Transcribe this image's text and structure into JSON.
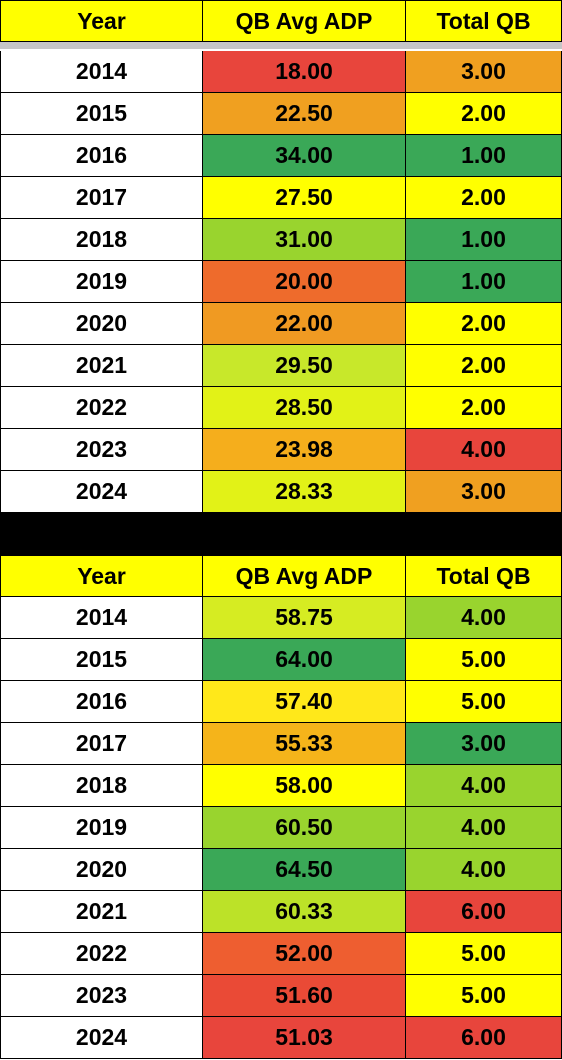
{
  "tables": [
    {
      "headers": [
        "Year",
        "QB Avg ADP",
        "Total QB"
      ],
      "rows": [
        {
          "year": "2014",
          "adp": "18.00",
          "total": "3.00",
          "adp_color": "#e8453c",
          "total_color": "#f0a020"
        },
        {
          "year": "2015",
          "adp": "22.50",
          "total": "2.00",
          "adp_color": "#f0a020",
          "total_color": "#ffff00"
        },
        {
          "year": "2016",
          "adp": "34.00",
          "total": "1.00",
          "adp_color": "#3aa857",
          "total_color": "#3aa857"
        },
        {
          "year": "2017",
          "adp": "27.50",
          "total": "2.00",
          "adp_color": "#ffff00",
          "total_color": "#ffff00"
        },
        {
          "year": "2018",
          "adp": "31.00",
          "total": "1.00",
          "adp_color": "#99d42e",
          "total_color": "#3aa857"
        },
        {
          "year": "2019",
          "adp": "20.00",
          "total": "1.00",
          "adp_color": "#ee6b2c",
          "total_color": "#3aa857"
        },
        {
          "year": "2020",
          "adp": "22.00",
          "total": "2.00",
          "adp_color": "#f09a22",
          "total_color": "#ffff00"
        },
        {
          "year": "2021",
          "adp": "29.50",
          "total": "2.00",
          "adp_color": "#c8e82a",
          "total_color": "#ffff00"
        },
        {
          "year": "2022",
          "adp": "28.50",
          "total": "2.00",
          "adp_color": "#e2f217",
          "total_color": "#ffff00"
        },
        {
          "year": "2023",
          "adp": "23.98",
          "total": "4.00",
          "adp_color": "#f5ae1c",
          "total_color": "#e8453c"
        },
        {
          "year": "2024",
          "adp": "28.33",
          "total": "3.00",
          "adp_color": "#e2f217",
          "total_color": "#f0a020"
        }
      ]
    },
    {
      "headers": [
        "Year",
        "QB Avg ADP",
        "Total QB"
      ],
      "rows": [
        {
          "year": "2014",
          "adp": "58.75",
          "total": "4.00",
          "adp_color": "#d6ec22",
          "total_color": "#99d42e"
        },
        {
          "year": "2015",
          "adp": "64.00",
          "total": "5.00",
          "adp_color": "#3aa857",
          "total_color": "#ffff00"
        },
        {
          "year": "2016",
          "adp": "57.40",
          "total": "5.00",
          "adp_color": "#ffe81a",
          "total_color": "#ffff00"
        },
        {
          "year": "2017",
          "adp": "55.33",
          "total": "3.00",
          "adp_color": "#f5b41a",
          "total_color": "#3aa857"
        },
        {
          "year": "2018",
          "adp": "58.00",
          "total": "4.00",
          "adp_color": "#ffff00",
          "total_color": "#99d42e"
        },
        {
          "year": "2019",
          "adp": "60.50",
          "total": "4.00",
          "adp_color": "#99d42e",
          "total_color": "#99d42e"
        },
        {
          "year": "2020",
          "adp": "64.50",
          "total": "4.00",
          "adp_color": "#3aa857",
          "total_color": "#99d42e"
        },
        {
          "year": "2021",
          "adp": "60.33",
          "total": "6.00",
          "adp_color": "#bce228",
          "total_color": "#e8453c"
        },
        {
          "year": "2022",
          "adp": "52.00",
          "total": "5.00",
          "adp_color": "#ee5e30",
          "total_color": "#ffff00"
        },
        {
          "year": "2023",
          "adp": "51.60",
          "total": "5.00",
          "adp_color": "#ea4a36",
          "total_color": "#ffff00"
        },
        {
          "year": "2024",
          "adp": "51.03",
          "total": "6.00",
          "adp_color": "#e8453c",
          "total_color": "#e8453c"
        }
      ]
    }
  ]
}
